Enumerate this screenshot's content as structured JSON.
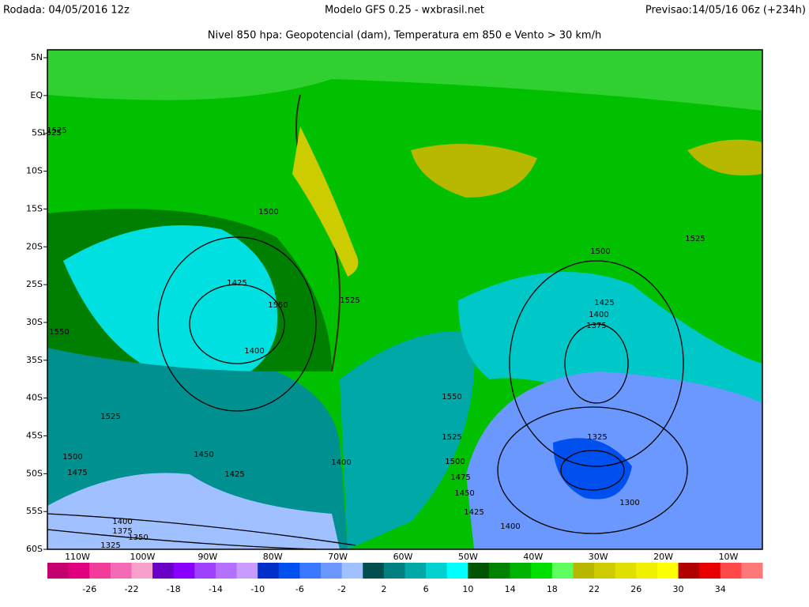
{
  "header": {
    "run": "Rodada: 04/05/2016 12z",
    "model": "Modelo GFS 0.25 - wxbrasil.net",
    "forecast": "Previsao:14/05/16 06z (+234h)",
    "subtitle": "Nivel 850 hpa: Geopotencial (dam), Temperatura em 850 e Vento > 30 km/h"
  },
  "lat_labels": [
    "5N",
    "EQ",
    "5S",
    "10S",
    "15S",
    "20S",
    "25S",
    "30S",
    "35S",
    "40S",
    "45S",
    "50S",
    "55S",
    "60S"
  ],
  "lon_labels": [
    "110W",
    "100W",
    "90W",
    "80W",
    "70W",
    "60W",
    "50W",
    "40W",
    "30W",
    "20W",
    "10W"
  ],
  "contour_labels": [
    "1525",
    "1500",
    "1550",
    "1525",
    "1525",
    "1425",
    "1400",
    "1550",
    "1525",
    "1500",
    "1475",
    "1425",
    "1450",
    "1400",
    "1375",
    "1350",
    "1325",
    "1550",
    "1525",
    "1500",
    "1475",
    "1450",
    "1425",
    "1400",
    "1500",
    "1425",
    "1400",
    "1375",
    "1325",
    "1300",
    "1400",
    "1525"
  ],
  "colorbar": {
    "colors": [
      "#c4006e",
      "#e0007f",
      "#f23c9a",
      "#f56ab4",
      "#f7a0cc",
      "#6a00c8",
      "#8a00ff",
      "#a040ff",
      "#b470ff",
      "#c89cff",
      "#0030c8",
      "#0050f0",
      "#3a78ff",
      "#6a98ff",
      "#a0c0ff",
      "#004e4e",
      "#008080",
      "#00a8a8",
      "#00d2d2",
      "#00ffff",
      "#005400",
      "#008400",
      "#00b400",
      "#00e000",
      "#60ff60",
      "#b8b800",
      "#cccc00",
      "#e0e000",
      "#f0f000",
      "#ffff00",
      "#b00000",
      "#e80000",
      "#ff4848",
      "#ff7878"
    ],
    "labels": [
      "-26",
      "-22",
      "-18",
      "-14",
      "-10",
      "-6",
      "-2",
      "2",
      "6",
      "10",
      "14",
      "18",
      "22",
      "26",
      "30",
      "34"
    ]
  }
}
